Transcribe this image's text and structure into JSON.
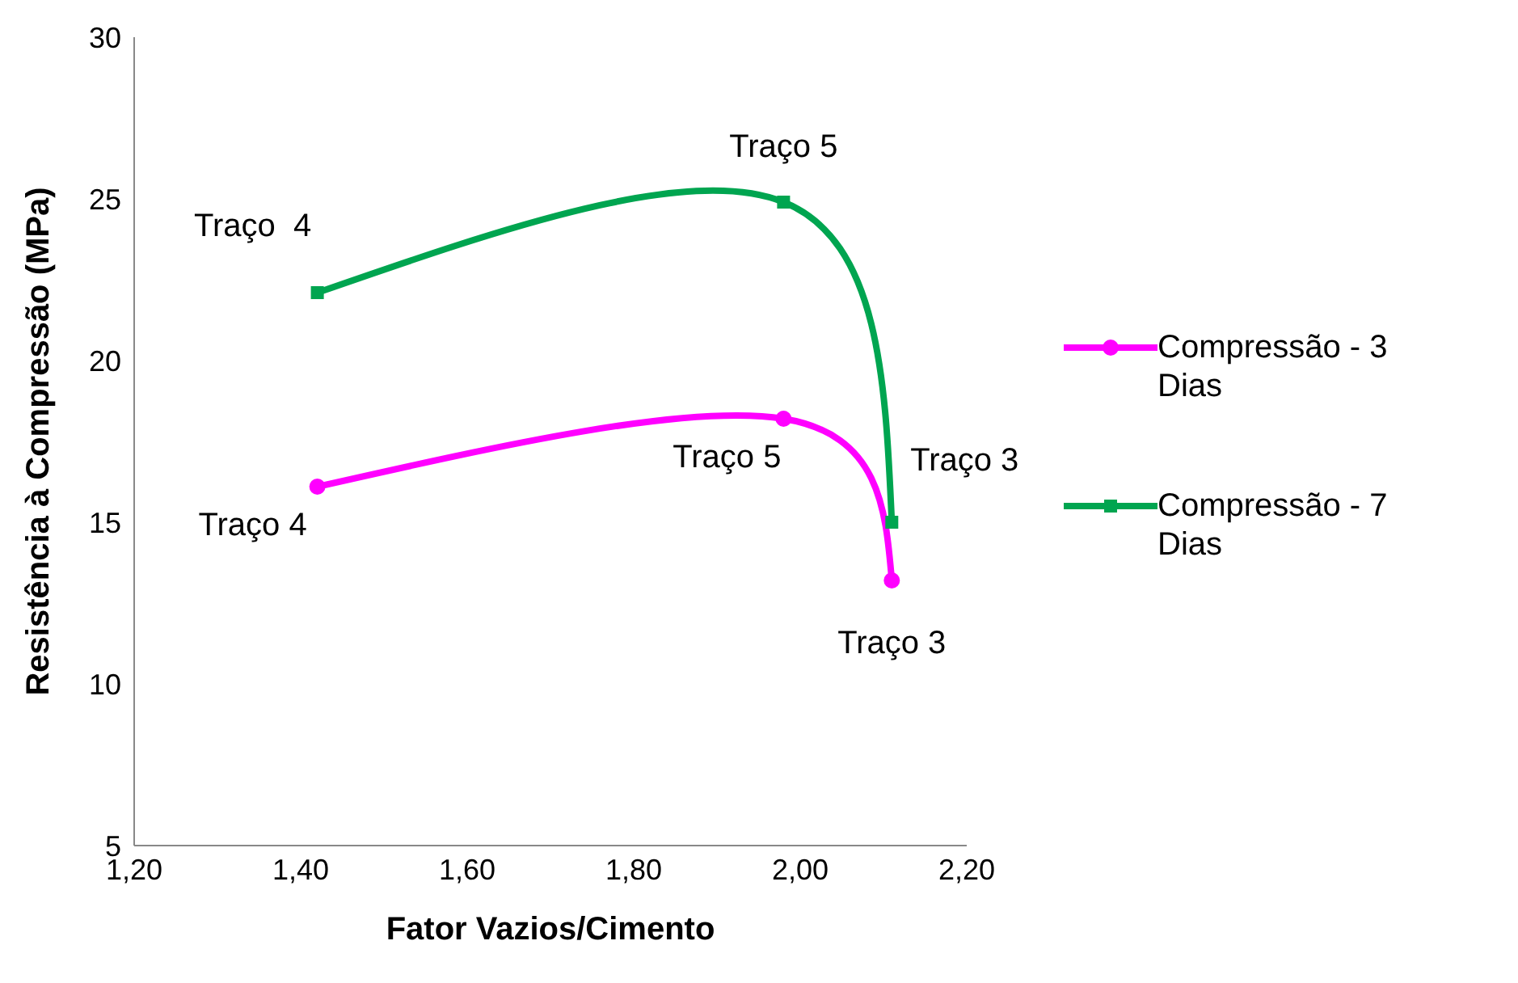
{
  "chart_data": {
    "type": "line",
    "xlabel": "Fator Vazios/Cimento",
    "ylabel": "Resistência à Compressão (MPa)",
    "x": [
      1.42,
      1.98,
      2.11
    ],
    "series": [
      {
        "name": "Compressão - 3 Dias",
        "color": "#ff00ff",
        "values": [
          16.1,
          18.2,
          13.2
        ],
        "marker": "circle"
      },
      {
        "name": "Compressão - 7 Dias",
        "color": "#00a550",
        "values": [
          22.1,
          24.9,
          15.0
        ],
        "marker": "square"
      }
    ],
    "xlim": [
      1.2,
      2.2
    ],
    "xticks": [
      {
        "value": 1.2,
        "label": "1,20"
      },
      {
        "value": 1.4,
        "label": "1,40"
      },
      {
        "value": 1.6,
        "label": "1,60"
      },
      {
        "value": 1.8,
        "label": "1,80"
      },
      {
        "value": 2.0,
        "label": "2,00"
      },
      {
        "value": 2.2,
        "label": "2,20"
      }
    ],
    "ylim": [
      5,
      30
    ],
    "yticks": [
      5,
      10,
      15,
      20,
      25,
      30
    ],
    "grid": false,
    "legend": "right",
    "line_style": "solid",
    "annotations": [
      {
        "text": "Traço 4",
        "x": 1.42,
        "y": 16.1
      },
      {
        "text": "Traço 5",
        "x": 1.98,
        "y": 18.2
      },
      {
        "text": "Traço 3",
        "x": 2.11,
        "y": 13.2
      },
      {
        "text": "Traço  4",
        "x": 1.42,
        "y": 22.1
      },
      {
        "text": "Traço 5",
        "x": 1.98,
        "y": 24.9
      },
      {
        "text": "Traço 3",
        "x": 2.11,
        "y": 15.0
      }
    ]
  }
}
